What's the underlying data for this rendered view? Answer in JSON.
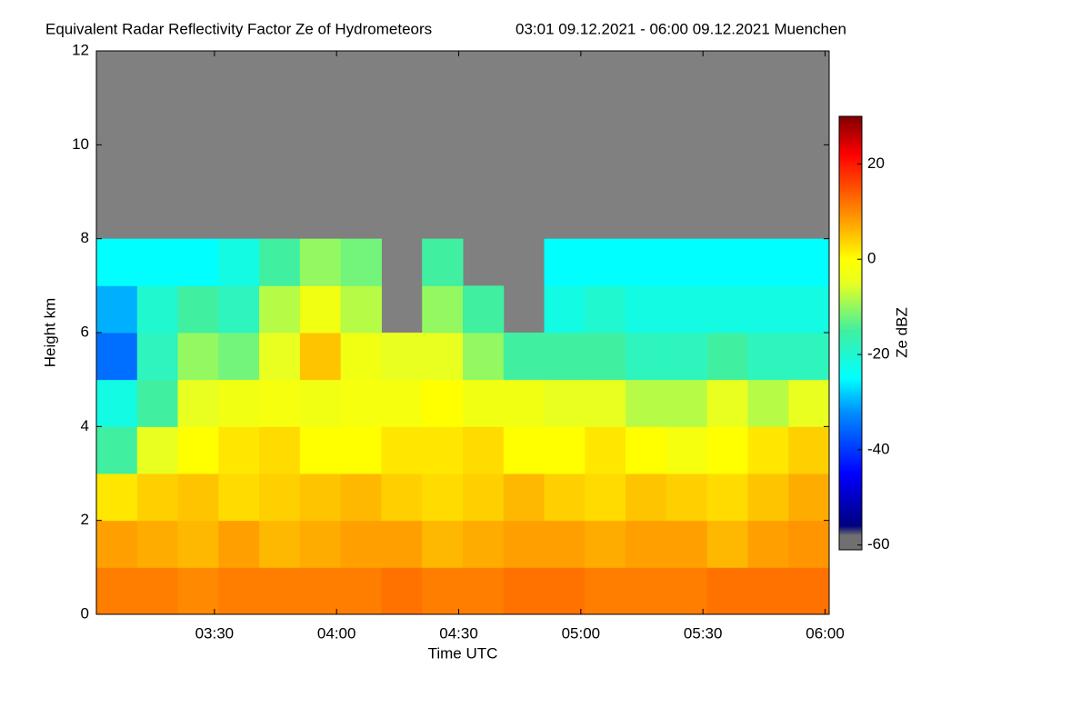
{
  "chart_data": {
    "type": "heatmap",
    "title": "Equivalent Radar Reflectivity Factor Ze of Hydrometeors",
    "subtitle": "03:01 09.12.2021 - 06:00 09.12.2021 Muenchen",
    "xlabel": "Time UTC",
    "ylabel": "Height km",
    "colorbar_label": "Ze dBZ",
    "xlim": [
      181,
      361
    ],
    "xticks": [
      {
        "value": 210,
        "label": "03:30"
      },
      {
        "value": 240,
        "label": "04:00"
      },
      {
        "value": 270,
        "label": "04:30"
      },
      {
        "value": 300,
        "label": "05:00"
      },
      {
        "value": 330,
        "label": "05:30"
      },
      {
        "value": 360,
        "label": "06:00"
      }
    ],
    "ylim": [
      0,
      12
    ],
    "yticks": [
      0,
      2,
      4,
      6,
      8,
      10,
      12
    ],
    "clim": [
      -61,
      30
    ],
    "cticks": [
      -60,
      -40,
      -20,
      0,
      20
    ],
    "nodata_color": "#808080",
    "colorscale": [
      [
        -61,
        "#707070"
      ],
      [
        -58,
        "#707070"
      ],
      [
        -56,
        "#000080"
      ],
      [
        -45,
        "#0000ff"
      ],
      [
        -32,
        "#0090ff"
      ],
      [
        -25,
        "#00ffff"
      ],
      [
        -15,
        "#40f0a0"
      ],
      [
        -5,
        "#e8ff20"
      ],
      [
        0,
        "#ffff00"
      ],
      [
        8,
        "#ffa000"
      ],
      [
        15,
        "#ff5000"
      ],
      [
        22,
        "#ff0000"
      ],
      [
        30,
        "#800000"
      ]
    ],
    "x": [
      186,
      196,
      206,
      216,
      226,
      236,
      246,
      256,
      266,
      276,
      286,
      296,
      306,
      316,
      326,
      336,
      346,
      356
    ],
    "y": [
      0.5,
      1.5,
      2.5,
      3.5,
      4.5,
      5.5,
      6.5,
      7.5,
      8.5,
      9.5,
      10.5,
      11.5
    ],
    "z": [
      [
        11,
        11,
        10,
        11,
        11,
        11,
        11,
        12,
        11,
        11,
        12,
        12,
        11,
        11,
        11,
        12,
        12,
        12
      ],
      [
        8,
        7,
        6,
        8,
        6,
        7,
        8,
        8,
        6,
        7,
        8,
        8,
        7,
        8,
        8,
        6,
        8,
        9
      ],
      [
        2,
        4,
        5,
        3,
        4,
        5,
        6,
        4,
        3,
        4,
        6,
        4,
        3,
        5,
        4,
        3,
        5,
        7
      ],
      [
        -15,
        -5,
        0,
        2,
        3,
        0,
        0,
        2,
        2,
        3,
        0,
        0,
        2,
        0,
        -2,
        0,
        2,
        4
      ],
      [
        -22,
        -15,
        -5,
        -3,
        -2,
        -3,
        -2,
        -2,
        0,
        -3,
        -3,
        -5,
        -5,
        -8,
        -8,
        -5,
        -8,
        -5
      ],
      [
        -35,
        -18,
        -10,
        -12,
        -5,
        5,
        -3,
        -5,
        -5,
        -10,
        -15,
        -15,
        -15,
        -18,
        -18,
        -15,
        -18,
        -18
      ],
      [
        -30,
        -20,
        -15,
        -18,
        -8,
        -3,
        -8,
        null,
        -10,
        -15,
        null,
        -22,
        -20,
        -22,
        -22,
        -22,
        -22,
        -22
      ],
      [
        -25,
        -25,
        -25,
        -22,
        -15,
        -10,
        -12,
        null,
        -15,
        null,
        null,
        -25,
        -25,
        -25,
        -25,
        -25,
        -25,
        -25
      ],
      [
        null,
        null,
        null,
        null,
        null,
        null,
        null,
        null,
        null,
        null,
        null,
        null,
        null,
        null,
        null,
        null,
        null,
        null
      ],
      [
        null,
        null,
        null,
        null,
        null,
        null,
        null,
        null,
        null,
        null,
        null,
        null,
        null,
        null,
        null,
        null,
        null,
        null
      ],
      [
        null,
        null,
        null,
        null,
        null,
        null,
        null,
        null,
        null,
        null,
        null,
        null,
        null,
        null,
        null,
        null,
        null,
        null
      ],
      [
        null,
        null,
        null,
        null,
        null,
        null,
        null,
        null,
        null,
        null,
        null,
        null,
        null,
        null,
        null,
        null,
        null,
        null
      ]
    ]
  }
}
